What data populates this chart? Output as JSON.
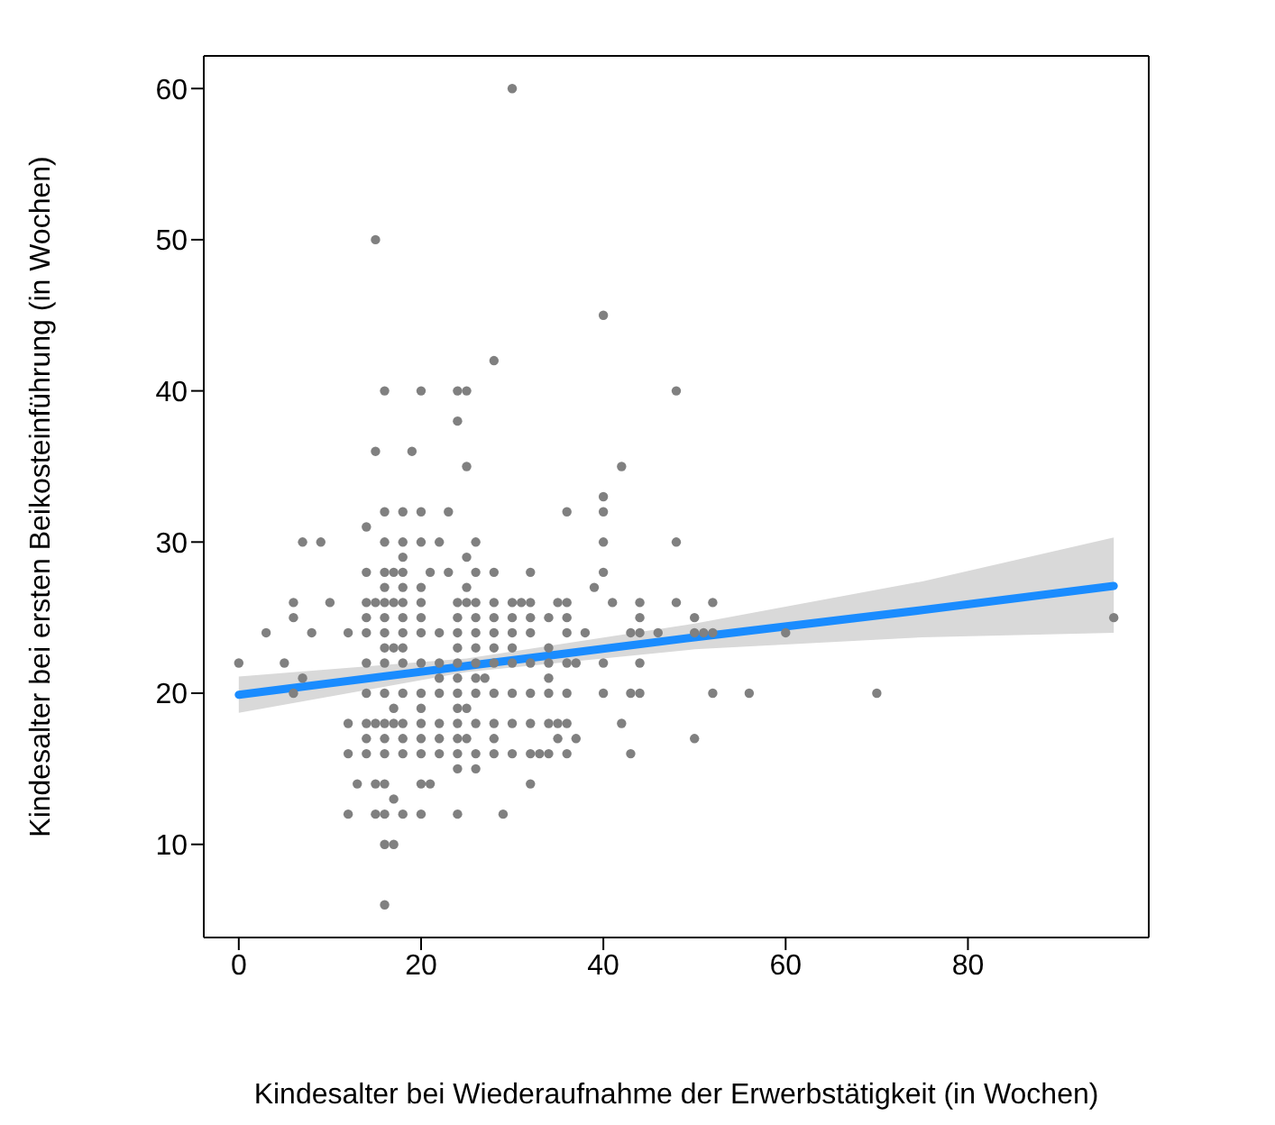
{
  "chart_data": {
    "type": "scatter",
    "xlabel": "Kindesalter bei Wiederaufnahme der Erwerbstätigkeit (in Wochen)",
    "ylabel": "Kindesalter bei ersten Beikosteinführung (in Wochen)",
    "xlim": [
      -3.84,
      99.84
    ],
    "ylim": [
      3.84,
      62.16
    ],
    "xticks": [
      0,
      20,
      40,
      60,
      80
    ],
    "yticks": [
      10,
      20,
      30,
      40,
      50,
      60
    ],
    "marker": "circle",
    "series": [
      {
        "color": "#808080",
        "x": [
          30,
          15,
          40,
          28,
          16,
          20,
          24,
          25,
          48,
          24,
          15,
          19,
          25,
          42,
          40,
          16,
          18,
          20,
          23,
          36,
          40,
          14,
          7,
          9,
          16,
          18,
          20,
          22,
          26,
          40,
          48,
          18,
          25,
          14,
          16,
          17,
          18,
          21,
          23,
          26,
          28,
          32,
          40,
          16,
          18,
          20,
          25,
          39,
          6,
          10,
          14,
          15,
          16,
          17,
          18,
          20,
          24,
          25,
          26,
          28,
          30,
          31,
          32,
          35,
          36,
          41,
          44,
          48,
          52,
          6,
          14,
          16,
          18,
          20,
          24,
          26,
          28,
          30,
          32,
          34,
          36,
          44,
          50,
          96,
          3,
          8,
          12,
          14,
          16,
          18,
          20,
          22,
          24,
          26,
          28,
          30,
          32,
          36,
          38,
          43,
          44,
          46,
          50,
          51,
          52,
          60,
          16,
          17,
          18,
          24,
          26,
          28,
          30,
          34,
          0,
          5,
          14,
          16,
          18,
          20,
          22,
          24,
          26,
          28,
          30,
          32,
          34,
          36,
          37,
          40,
          44,
          7,
          22,
          24,
          26,
          27,
          34,
          6,
          14,
          16,
          18,
          20,
          22,
          24,
          26,
          28,
          30,
          32,
          34,
          36,
          40,
          43,
          44,
          52,
          56,
          70,
          17,
          20,
          24,
          25,
          12,
          14,
          15,
          16,
          17,
          18,
          20,
          22,
          24,
          26,
          28,
          30,
          32,
          34,
          35,
          36,
          42,
          14,
          16,
          18,
          20,
          22,
          24,
          25,
          28,
          35,
          37,
          50,
          12,
          14,
          16,
          18,
          20,
          22,
          24,
          26,
          28,
          30,
          32,
          33,
          34,
          36,
          43,
          24,
          26,
          13,
          15,
          16,
          20,
          21,
          32,
          17,
          12,
          15,
          16,
          18,
          20,
          24,
          29,
          16,
          17,
          16
        ],
        "values": [
          60,
          50,
          45,
          42,
          40,
          40,
          40,
          40,
          40,
          38,
          36,
          36,
          35,
          35,
          33,
          32,
          32,
          32,
          32,
          32,
          32,
          31,
          30,
          30,
          30,
          30,
          30,
          30,
          30,
          30,
          30,
          29,
          29,
          28,
          28,
          28,
          28,
          28,
          28,
          28,
          28,
          28,
          28,
          27,
          27,
          27,
          27,
          27,
          26,
          26,
          26,
          26,
          26,
          26,
          26,
          26,
          26,
          26,
          26,
          26,
          26,
          26,
          26,
          26,
          26,
          26,
          26,
          26,
          26,
          25,
          25,
          25,
          25,
          25,
          25,
          25,
          25,
          25,
          25,
          25,
          25,
          25,
          25,
          25,
          24,
          24,
          24,
          24,
          24,
          24,
          24,
          24,
          24,
          24,
          24,
          24,
          24,
          24,
          24,
          24,
          24,
          24,
          24,
          24,
          24,
          24,
          23,
          23,
          23,
          23,
          23,
          23,
          23,
          23,
          22,
          22,
          22,
          22,
          22,
          22,
          22,
          22,
          22,
          22,
          22,
          22,
          22,
          22,
          22,
          22,
          22,
          21,
          21,
          21,
          21,
          21,
          21,
          20,
          20,
          20,
          20,
          20,
          20,
          20,
          20,
          20,
          20,
          20,
          20,
          20,
          20,
          20,
          20,
          20,
          20,
          20,
          19,
          19,
          19,
          19,
          18,
          18,
          18,
          18,
          18,
          18,
          18,
          18,
          18,
          18,
          18,
          18,
          18,
          18,
          18,
          18,
          18,
          17,
          17,
          17,
          17,
          17,
          17,
          17,
          17,
          17,
          17,
          17,
          16,
          16,
          16,
          16,
          16,
          16,
          16,
          16,
          16,
          16,
          16,
          16,
          16,
          16,
          16,
          15,
          15,
          14,
          14,
          14,
          14,
          14,
          14,
          13,
          12,
          12,
          12,
          12,
          12,
          12,
          12,
          10,
          10,
          6
        ]
      },
      {
        "type": "line",
        "marker": "none",
        "color": "#1a8cff",
        "x": [
          0,
          25,
          50,
          75,
          96
        ],
        "values": [
          19.9,
          21.8,
          23.7,
          25.5,
          27.1
        ],
        "lower": [
          18.7,
          21.4,
          22.9,
          23.7,
          24.0
        ],
        "upper": [
          21.1,
          22.3,
          24.6,
          27.4,
          30.3
        ]
      }
    ]
  }
}
